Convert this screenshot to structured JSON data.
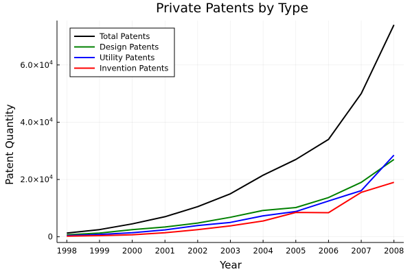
{
  "chart_data": {
    "type": "line",
    "title": "Private Patents by Type",
    "xlabel": "Year",
    "ylabel": "Patent Quantity",
    "x": [
      1998,
      1999,
      2000,
      2001,
      2002,
      2003,
      2004,
      2005,
      2006,
      2007,
      2008
    ],
    "xlim": [
      1997.7,
      2008.3
    ],
    "ylim": [
      -2000,
      75500
    ],
    "y_ticks": [
      {
        "value": 0,
        "label": "0",
        "mantissa": "",
        "exponent": ""
      },
      {
        "value": 20000,
        "label": "",
        "mantissa": "2.0×10",
        "exponent": "4"
      },
      {
        "value": 40000,
        "label": "",
        "mantissa": "4.0×10",
        "exponent": "4"
      },
      {
        "value": 60000,
        "label": "",
        "mantissa": "6.0×10",
        "exponent": "4"
      }
    ],
    "grid": true,
    "legend_position": "top-left",
    "series": [
      {
        "name": "Total Patents",
        "color": "#000000",
        "values": [
          1300,
          2500,
          4500,
          7000,
          10500,
          15000,
          21500,
          27000,
          34000,
          50000,
          74000
        ]
      },
      {
        "name": "Design Patents",
        "color": "#008000",
        "values": [
          700,
          1300,
          2500,
          3400,
          4800,
          6800,
          9200,
          10200,
          13700,
          19000,
          27000
        ]
      },
      {
        "name": "Utility Patents",
        "color": "#0000ff",
        "values": [
          400,
          800,
          1400,
          2400,
          3900,
          5000,
          7300,
          8800,
          12500,
          16100,
          28500
        ]
      },
      {
        "name": "Invention Patents",
        "color": "#ff0000",
        "values": [
          200,
          400,
          700,
          1400,
          2500,
          3800,
          5500,
          8500,
          8400,
          15500,
          19000
        ]
      }
    ]
  }
}
